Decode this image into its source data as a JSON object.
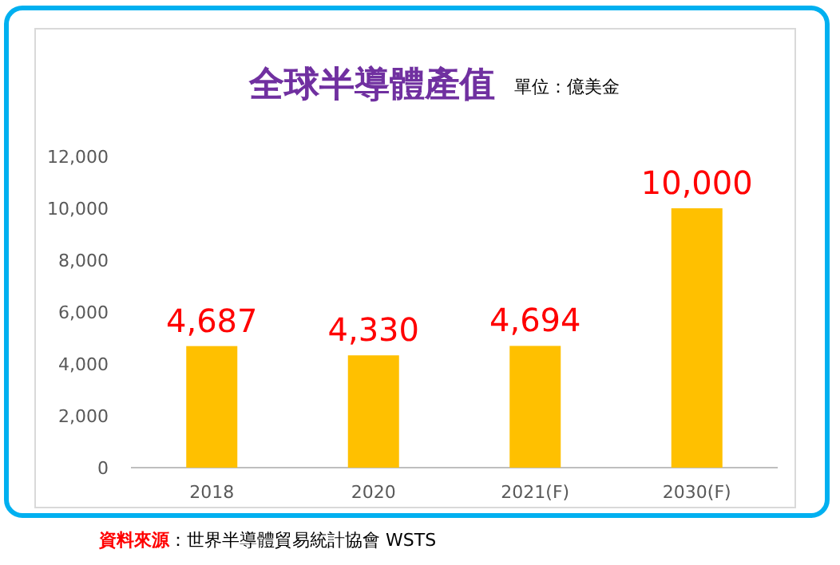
{
  "chart_data": {
    "type": "bar",
    "title": "全球半導體產值",
    "subtitle": "單位：億美金",
    "categories": [
      "2018",
      "2020",
      "2021(F)",
      "2030(F)"
    ],
    "values": [
      4687,
      4330,
      4694,
      10000
    ],
    "value_labels": [
      "4,687",
      "4,330",
      "4,694",
      "10,000"
    ],
    "color": "#ffc000",
    "ylim": [
      0,
      12000
    ],
    "yticks": [
      {
        "value": 0,
        "label": "0"
      },
      {
        "value": 2000,
        "label": "2,000"
      },
      {
        "value": 4000,
        "label": "4,000"
      },
      {
        "value": 6000,
        "label": "6,000"
      },
      {
        "value": 8000,
        "label": "8,000"
      },
      {
        "value": 10000,
        "label": "10,000"
      },
      {
        "value": 12000,
        "label": "12,000"
      }
    ],
    "grid": false,
    "annotations": [
      "**資料來源**：世界半導體貿易統計協會 WSTS"
    ]
  }
}
